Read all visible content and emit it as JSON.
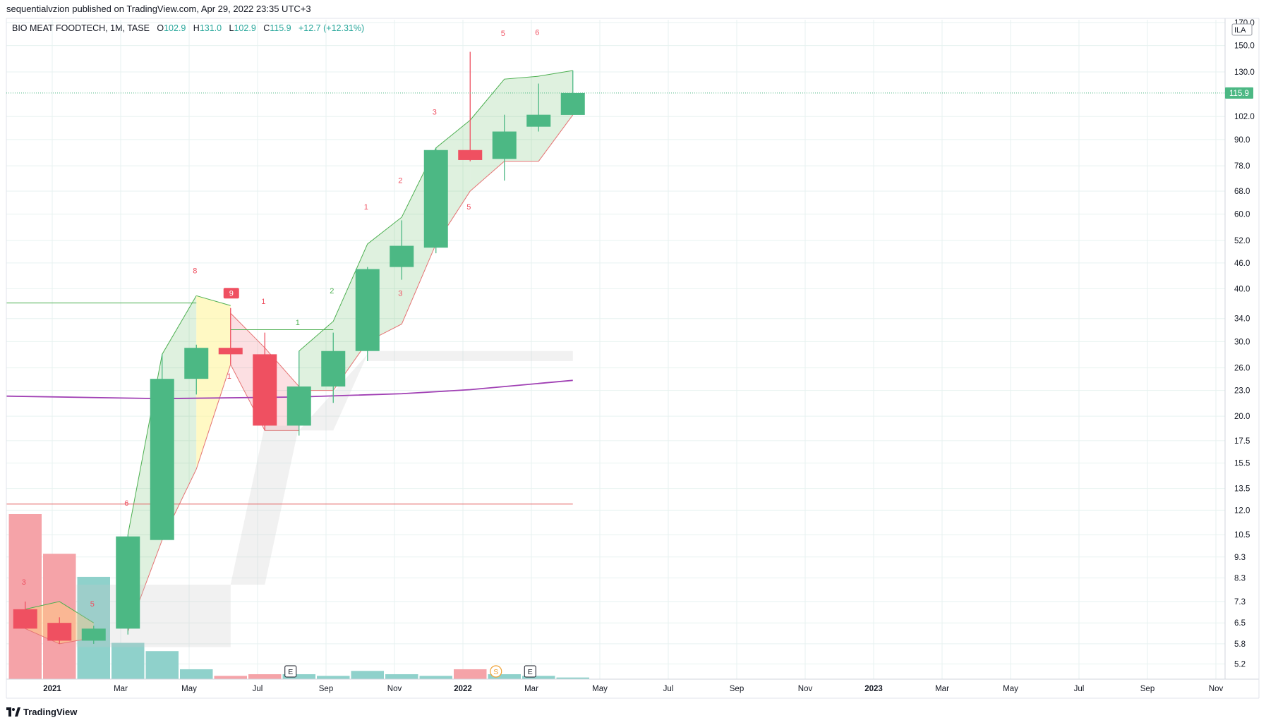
{
  "header": {
    "published": "sequentialvzion published on TradingView.com, Apr 29, 2022 23:35 UTC+3"
  },
  "legend": {
    "symbol": "BIO MEAT FOODTECH, 1M, TASE",
    "o_label": "O",
    "o": "102.9",
    "h_label": "H",
    "h": "131.0",
    "l_label": "L",
    "l": "102.9",
    "c_label": "C",
    "c": "115.9",
    "change": "+12.7 (+12.31%)"
  },
  "footer": {
    "brand": "TradingView"
  },
  "colors": {
    "up": "#4cb884",
    "down": "#ef5061",
    "grid": "#e7f2f0",
    "ma": "#a040b4",
    "support": "#e15a5a",
    "tdst": "#4caf50",
    "count_up": "#4caf50",
    "count_down": "#ef5061",
    "price_tag": "#4cb884",
    "volume_up": "#8fd1cb",
    "volume_down": "#f5a3a8"
  },
  "chart_data": {
    "type": "candlestick",
    "interval": "1M",
    "scale": "log",
    "currency": "ILA",
    "y_ticks": [
      "170.0",
      "150.0",
      "130.0",
      "115.9",
      "102.0",
      "90.0",
      "78.0",
      "68.0",
      "60.0",
      "52.0",
      "46.0",
      "40.0",
      "34.0",
      "30.0",
      "26.0",
      "23.0",
      "20.0",
      "17.5",
      "15.5",
      "13.5",
      "12.0",
      "10.5",
      "9.3",
      "8.3",
      "7.3",
      "6.5",
      "5.8",
      "5.2"
    ],
    "current_price": "115.9",
    "x_ticks": [
      "2021",
      "Mar",
      "May",
      "Jul",
      "Sep",
      "Nov",
      "2022",
      "Mar",
      "May",
      "Jul",
      "Sep",
      "Nov",
      "2023",
      "Mar",
      "May",
      "Jul",
      "Sep",
      "Nov"
    ],
    "candles": [
      {
        "date": "2020-12",
        "o": 7.0,
        "h": 7.3,
        "l": 6.3,
        "c": 6.3
      },
      {
        "date": "2021-01",
        "o": 6.5,
        "h": 6.7,
        "l": 5.8,
        "c": 5.9
      },
      {
        "date": "2021-02",
        "o": 5.9,
        "h": 6.4,
        "l": 5.8,
        "c": 6.3
      },
      {
        "date": "2021-03",
        "o": 6.3,
        "h": 10.5,
        "l": 6.1,
        "c": 10.4
      },
      {
        "date": "2021-04",
        "o": 10.2,
        "h": 28.0,
        "l": 10.2,
        "c": 24.5
      },
      {
        "date": "2021-05",
        "o": 24.5,
        "h": 29.5,
        "l": 22.5,
        "c": 29.0
      },
      {
        "date": "2021-06",
        "o": 29.0,
        "h": 36.0,
        "l": 26.5,
        "c": 28.0
      },
      {
        "date": "2021-07",
        "o": 28.0,
        "h": 31.5,
        "l": 18.5,
        "c": 19.0
      },
      {
        "date": "2021-08",
        "o": 19.0,
        "h": 28.5,
        "l": 18.0,
        "c": 23.5
      },
      {
        "date": "2021-09",
        "o": 23.5,
        "h": 31.5,
        "l": 21.5,
        "c": 28.5
      },
      {
        "date": "2021-10",
        "o": 28.5,
        "h": 45.0,
        "l": 27.0,
        "c": 44.5
      },
      {
        "date": "2021-11",
        "o": 45.0,
        "h": 58.0,
        "l": 42.0,
        "c": 50.5
      },
      {
        "date": "2021-12",
        "o": 50.0,
        "h": 86.0,
        "l": 48.5,
        "c": 85.0
      },
      {
        "date": "2022-01",
        "o": 85.0,
        "h": 145.0,
        "l": 80.0,
        "c": 80.5
      },
      {
        "date": "2022-02",
        "o": 81.0,
        "h": 103.0,
        "l": 72.0,
        "c": 94.0
      },
      {
        "date": "2022-03",
        "o": 96.5,
        "h": 122.0,
        "l": 94.0,
        "c": 103.0
      },
      {
        "date": "2022-04",
        "o": 102.9,
        "h": 131.0,
        "l": 102.9,
        "c": 115.9
      }
    ],
    "volume": [
      {
        "date": "2020-12",
        "v": 100,
        "up": false
      },
      {
        "date": "2021-01",
        "v": 76,
        "up": false
      },
      {
        "date": "2021-02",
        "v": 62,
        "up": true
      },
      {
        "date": "2021-03",
        "v": 22,
        "up": true
      },
      {
        "date": "2021-04",
        "v": 17,
        "up": true
      },
      {
        "date": "2021-05",
        "v": 6,
        "up": true
      },
      {
        "date": "2021-06",
        "v": 2,
        "up": false
      },
      {
        "date": "2021-07",
        "v": 3,
        "up": false
      },
      {
        "date": "2021-08",
        "v": 3,
        "up": true
      },
      {
        "date": "2021-09",
        "v": 2,
        "up": true
      },
      {
        "date": "2021-10",
        "v": 5,
        "up": true
      },
      {
        "date": "2021-11",
        "v": 3,
        "up": true
      },
      {
        "date": "2021-12",
        "v": 2,
        "up": true
      },
      {
        "date": "2022-01",
        "v": 6,
        "up": false
      },
      {
        "date": "2022-02",
        "v": 3,
        "up": true
      },
      {
        "date": "2022-03",
        "v": 2,
        "up": true
      },
      {
        "date": "2022-04",
        "v": 1,
        "up": true
      }
    ],
    "moving_average": [
      {
        "date": "2020-12",
        "v": 22.3
      },
      {
        "date": "2021-04",
        "v": 22.0
      },
      {
        "date": "2021-08",
        "v": 22.2
      },
      {
        "date": "2021-11",
        "v": 22.6
      },
      {
        "date": "2022-01",
        "v": 23.1
      },
      {
        "date": "2022-04",
        "v": 24.3
      }
    ],
    "tdst_lines": [
      {
        "price": 37.0,
        "from": "2020-12",
        "to": "2021-05",
        "color": "green"
      },
      {
        "price": 32.0,
        "from": "2021-06",
        "to": "2021-09",
        "color": "green"
      },
      {
        "price": 12.4,
        "from": "2020-12",
        "to": "2022-04",
        "color": "red"
      }
    ],
    "counts": [
      {
        "date": "2020-12",
        "price": 8.0,
        "text": "3",
        "color": "red"
      },
      {
        "date": "2021-02",
        "price": 7.1,
        "text": "5",
        "color": "red"
      },
      {
        "date": "2021-03",
        "price": 12.3,
        "text": "6",
        "color": "red"
      },
      {
        "date": "2021-05",
        "price": 43.5,
        "text": "8",
        "color": "red"
      },
      {
        "date": "2021-06",
        "price": 38.5,
        "text": "9",
        "color": "red",
        "boxed": true
      },
      {
        "date": "2021-06",
        "price": 24.5,
        "text": "1",
        "color": "red"
      },
      {
        "date": "2021-07",
        "price": 36.8,
        "text": "1",
        "color": "red"
      },
      {
        "date": "2021-08",
        "price": 32.8,
        "text": "1",
        "color": "green"
      },
      {
        "date": "2021-09",
        "price": 39.0,
        "text": "2",
        "color": "green"
      },
      {
        "date": "2021-10",
        "price": 61.5,
        "text": "1",
        "color": "red"
      },
      {
        "date": "2021-11",
        "price": 38.5,
        "text": "3",
        "color": "red"
      },
      {
        "date": "2021-11",
        "price": 71.0,
        "text": "2",
        "color": "red"
      },
      {
        "date": "2021-12",
        "price": 103.0,
        "text": "3",
        "color": "red"
      },
      {
        "date": "2022-01",
        "price": 61.5,
        "text": "5",
        "color": "red"
      },
      {
        "date": "2022-02",
        "price": 158.0,
        "text": "5",
        "color": "red"
      },
      {
        "date": "2022-03",
        "price": 159.0,
        "text": "6",
        "color": "red"
      }
    ],
    "events": [
      {
        "date": "2021-08",
        "text": "E"
      },
      {
        "date": "2022-02",
        "text": "S"
      },
      {
        "date": "2022-03",
        "text": "E"
      }
    ]
  }
}
